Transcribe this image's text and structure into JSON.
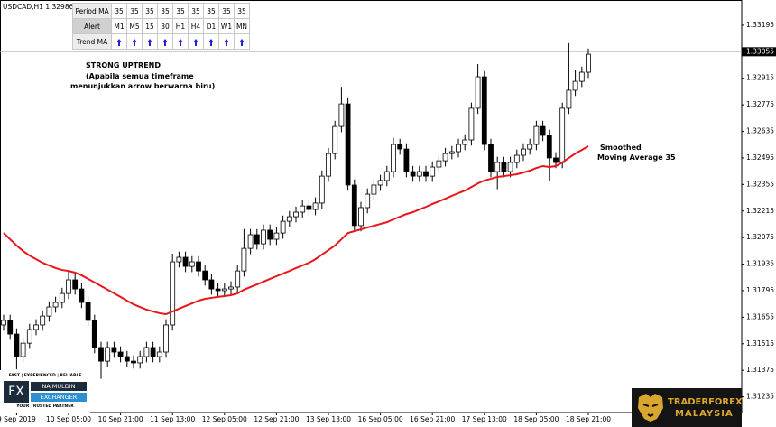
{
  "chart_data": {
    "type": "candlestick",
    "title": "USDCAD,H1  1.32986 1.",
    "annotations": [
      "STRONG UPTREND",
      "(Apabila semua timeframe",
      "menunjukkan arrow berwarna biru)",
      "Smoothed",
      "Moving Average 35"
    ],
    "categories": [
      null,
      null,
      "9 Sep 2019",
      null,
      null,
      null,
      null,
      null,
      null,
      null,
      "10 Sep 05:00",
      null,
      null,
      null,
      null,
      null,
      null,
      null,
      "10 Sep 21:00",
      null,
      null,
      null,
      null,
      null,
      null,
      null,
      "11 Sep 13:00",
      null,
      null,
      null,
      null,
      null,
      null,
      null,
      "12 Sep 05:00",
      null,
      null,
      null,
      null,
      null,
      null,
      null,
      "12 Sep 21:00",
      null,
      null,
      null,
      null,
      null,
      null,
      null,
      "13 Sep 13:00",
      null,
      null,
      null,
      null,
      null,
      null,
      null,
      "16 Sep 05:00",
      null,
      null,
      null,
      null,
      null,
      null,
      null,
      "16 Sep 21:00",
      null,
      null,
      null,
      null,
      null,
      null,
      null,
      "17 Sep 13:00",
      null,
      null,
      null,
      null,
      null,
      null,
      null,
      "18 Sep 05:00",
      null,
      null,
      null,
      null,
      null,
      null,
      null,
      "18 Sep 21:00"
    ],
    "open": [
      1.31614,
      1.31638,
      1.31566,
      1.31447,
      1.31518,
      1.3159,
      1.31614,
      1.31661,
      1.31709,
      1.31733,
      1.3178,
      1.31852,
      1.31804,
      1.31733,
      1.31638,
      1.31495,
      1.31423,
      1.31495,
      1.31471,
      1.31447,
      1.31423,
      1.31414,
      1.31447,
      1.31495,
      1.31447,
      1.31471,
      1.31614,
      1.31947,
      1.31971,
      1.31923,
      1.31947,
      1.31899,
      1.31852,
      1.31804,
      1.31795,
      1.31804,
      1.31814,
      1.31899,
      1.32018,
      1.3209,
      1.32042,
      1.32114,
      1.32066,
      1.32099,
      1.32161,
      1.32185,
      1.32209,
      1.32242,
      1.32223,
      1.32257,
      1.32399,
      1.32518,
      1.32661,
      1.3278,
      1.32352,
      1.32138,
      1.32233,
      1.32304,
      1.32352,
      1.32376,
      1.32423,
      1.32566,
      1.32542,
      1.32423,
      1.32399,
      1.32423,
      1.32399,
      1.32447,
      1.3248,
      1.32518,
      1.32528,
      1.32566,
      1.3259,
      1.32757,
      1.32923,
      1.32566,
      1.32423,
      1.32471,
      1.32423,
      1.32471,
      1.32509,
      1.32542,
      1.32566,
      1.32661,
      1.32614,
      1.32495,
      1.32471,
      1.32757,
      1.32852,
      1.32899,
      1.32947
    ],
    "high": [
      1.31668,
      1.31668,
      1.31596,
      1.31548,
      1.3162,
      1.31644,
      1.31691,
      1.31739,
      1.31763,
      1.3181,
      1.319,
      1.31882,
      1.31834,
      1.31763,
      1.31668,
      1.31525,
      1.31525,
      1.31525,
      1.31501,
      1.31477,
      1.31453,
      1.31477,
      1.31525,
      1.31525,
      1.31501,
      1.31644,
      1.3199,
      1.32001,
      1.32001,
      1.31977,
      1.31977,
      1.31929,
      1.31882,
      1.31834,
      1.31834,
      1.31844,
      1.31929,
      1.3212,
      1.3212,
      1.3212,
      1.32144,
      1.32144,
      1.32129,
      1.32191,
      1.32215,
      1.32239,
      1.32272,
      1.32272,
      1.32287,
      1.32429,
      1.32548,
      1.32691,
      1.3287,
      1.3281,
      1.32382,
      1.32263,
      1.32334,
      1.32382,
      1.32406,
      1.32453,
      1.326,
      1.32596,
      1.32572,
      1.32453,
      1.32453,
      1.32453,
      1.32477,
      1.3251,
      1.32548,
      1.32558,
      1.32596,
      1.3262,
      1.32787,
      1.3299,
      1.32953,
      1.32596,
      1.32501,
      1.32501,
      1.32501,
      1.32539,
      1.32572,
      1.32596,
      1.32691,
      1.32691,
      1.32644,
      1.32525,
      1.32787,
      1.331,
      1.3296,
      1.32977,
      1.33072
    ],
    "low": [
      1.31584,
      1.31536,
      1.3138,
      1.31417,
      1.31488,
      1.3156,
      1.31584,
      1.31631,
      1.31679,
      1.31703,
      1.3175,
      1.31774,
      1.31703,
      1.31608,
      1.31465,
      1.3133,
      1.31393,
      1.31441,
      1.31417,
      1.31393,
      1.31384,
      1.31384,
      1.31417,
      1.31417,
      1.31417,
      1.31441,
      1.31584,
      1.31917,
      1.31893,
      1.31893,
      1.31869,
      1.31822,
      1.31774,
      1.31765,
      1.31765,
      1.31774,
      1.31784,
      1.31869,
      1.31988,
      1.32012,
      1.32012,
      1.32036,
      1.32036,
      1.32069,
      1.32131,
      1.32155,
      1.32179,
      1.32193,
      1.32193,
      1.32227,
      1.32369,
      1.32488,
      1.32631,
      1.32322,
      1.32108,
      1.32108,
      1.32203,
      1.32274,
      1.32322,
      1.32346,
      1.32393,
      1.32512,
      1.32393,
      1.32369,
      1.32369,
      1.32369,
      1.32369,
      1.32417,
      1.3245,
      1.32488,
      1.32498,
      1.32536,
      1.3256,
      1.32727,
      1.32536,
      1.32393,
      1.3233,
      1.32393,
      1.32393,
      1.32441,
      1.32479,
      1.32512,
      1.32536,
      1.32584,
      1.32376,
      1.32441,
      1.32441,
      1.32727,
      1.32822,
      1.32869,
      1.32917
    ],
    "close": [
      1.31638,
      1.31566,
      1.31447,
      1.31518,
      1.3159,
      1.31614,
      1.31661,
      1.31709,
      1.31733,
      1.3178,
      1.31852,
      1.31804,
      1.31733,
      1.31638,
      1.31495,
      1.31423,
      1.31495,
      1.31471,
      1.31447,
      1.31423,
      1.31414,
      1.31447,
      1.31495,
      1.31447,
      1.31471,
      1.31614,
      1.31947,
      1.31971,
      1.31923,
      1.31947,
      1.31899,
      1.31852,
      1.31804,
      1.31795,
      1.31804,
      1.31814,
      1.31899,
      1.32018,
      1.3209,
      1.32042,
      1.32114,
      1.32066,
      1.32099,
      1.32161,
      1.32185,
      1.32209,
      1.32242,
      1.32223,
      1.32257,
      1.32399,
      1.32518,
      1.32661,
      1.3278,
      1.32352,
      1.32138,
      1.32233,
      1.32304,
      1.32352,
      1.32376,
      1.32423,
      1.32566,
      1.32542,
      1.32423,
      1.32399,
      1.32423,
      1.32399,
      1.32447,
      1.3248,
      1.32518,
      1.32528,
      1.32566,
      1.3259,
      1.32757,
      1.32923,
      1.32566,
      1.32423,
      1.32471,
      1.32423,
      1.32471,
      1.32509,
      1.32542,
      1.32566,
      1.32661,
      1.32614,
      1.32495,
      1.32471,
      1.32757,
      1.32852,
      1.32899,
      1.32947,
      1.33042
    ],
    "ma": {
      "color": "#e8161b",
      "values": [
        1.32099,
        1.32066,
        1.32033,
        1.32004,
        1.3198,
        1.31961,
        1.31942,
        1.31928,
        1.31914,
        1.31904,
        1.31899,
        1.3189,
        1.31876,
        1.31857,
        1.31838,
        1.31819,
        1.318,
        1.31781,
        1.31762,
        1.31742,
        1.31723,
        1.31709,
        1.31695,
        1.31685,
        1.31676,
        1.31671,
        1.31685,
        1.317,
        1.31714,
        1.31728,
        1.31742,
        1.31752,
        1.31757,
        1.31762,
        1.31766,
        1.31771,
        1.31781,
        1.318,
        1.31814,
        1.31828,
        1.31842,
        1.31857,
        1.31871,
        1.31885,
        1.31899,
        1.31914,
        1.31928,
        1.31942,
        1.31961,
        1.31985,
        1.32009,
        1.32033,
        1.32066,
        1.32099,
        1.32109,
        1.32118,
        1.32128,
        1.32137,
        1.32147,
        1.32156,
        1.32171,
        1.32185,
        1.32199,
        1.32209,
        1.32223,
        1.32237,
        1.32252,
        1.32266,
        1.3228,
        1.32295,
        1.32309,
        1.32323,
        1.32342,
        1.32361,
        1.32376,
        1.32385,
        1.32395,
        1.32399,
        1.32404,
        1.32409,
        1.32418,
        1.32428,
        1.32442,
        1.32452,
        1.32447,
        1.32452,
        1.32471,
        1.32495,
        1.32518,
        1.32537,
        1.32557
      ]
    },
    "current_price": 1.33055,
    "ylim": [
      1.31152,
      1.33328
    ],
    "yticks": [
      1.31235,
      1.31375,
      1.31515,
      1.31655,
      1.31795,
      1.31935,
      1.32075,
      1.32215,
      1.32355,
      1.32495,
      1.32635,
      1.32775,
      1.32915,
      1.33195
    ],
    "grid": false
  },
  "table": {
    "rows": [
      [
        "Period MA",
        "35",
        "35",
        "35",
        "35",
        "35",
        "35",
        "35",
        "35",
        "35"
      ],
      [
        "Alert",
        "M1",
        "M5",
        "15",
        "30",
        "H1",
        "H4",
        "D1",
        "W1",
        "MN"
      ],
      [
        "Trend MA"
      ]
    ]
  },
  "logos": {
    "fx_tagline": "FAST | EXPERIENCED | RELIABLE",
    "fx_mark": "FX",
    "fx_name1": "NAJMULDIN",
    "fx_name2": "EXCHANGER",
    "fx_slogan": "YOUR TRUSTED PARTNER",
    "tf_name1": "TRADERFOREX",
    "tf_name2": "MALAYSIA"
  }
}
